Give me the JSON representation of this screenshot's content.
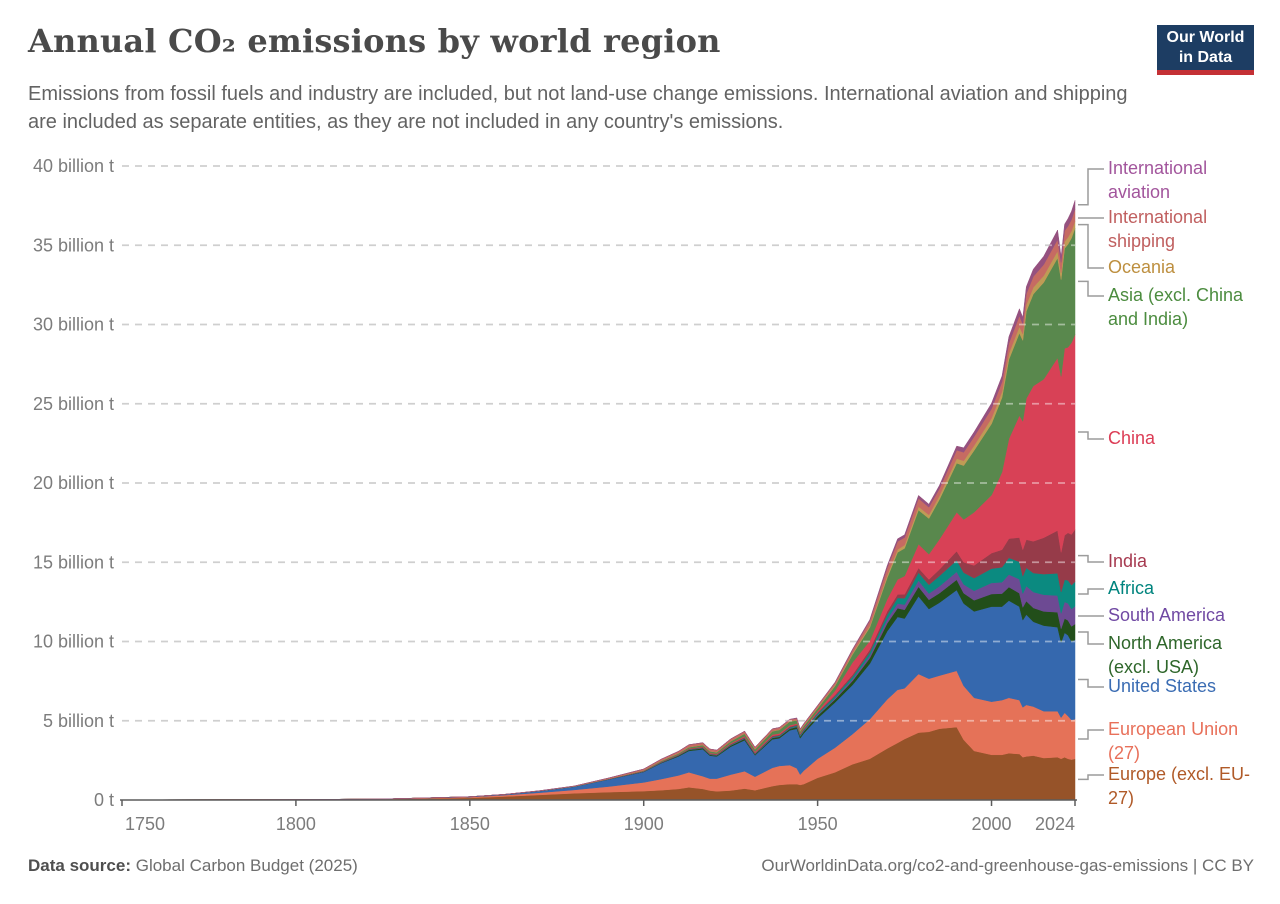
{
  "header": {
    "logo": {
      "line1": "Our World",
      "line2": "in Data",
      "bg_color": "#1d3d63",
      "accent_color": "#c43035"
    }
  },
  "footer": {
    "source_label": "Data source:",
    "source_value": "Global Carbon Budget (2025)",
    "attribution_link": "OurWorldinData.org/co2-and-greenhouse-gas-emissions",
    "attribution_license": "| CC BY"
  },
  "chart_data": {
    "type": "area",
    "stacked": true,
    "title": "Annual CO₂ emissions by world region",
    "subtitle": "Emissions from fossil fuels and industry are included, but not land-use change emissions. International aviation and shipping are included as separate entities, as they are not included in any country's emissions.",
    "unit": "billion t",
    "xlim": [
      1750,
      2024
    ],
    "ylim": [
      0,
      40
    ],
    "grid": "dashed-horizontal",
    "legend_position": "right",
    "x_ticks": [
      1750,
      1800,
      1850,
      1900,
      1950,
      2000,
      2024
    ],
    "y_ticks": [
      {
        "value": 0,
        "label": "0 t"
      },
      {
        "value": 5,
        "label": "5 billion t"
      },
      {
        "value": 10,
        "label": "10 billion t"
      },
      {
        "value": 15,
        "label": "15 billion t"
      },
      {
        "value": 20,
        "label": "20 billion t"
      },
      {
        "value": 25,
        "label": "25 billion t"
      },
      {
        "value": 30,
        "label": "30 billion t"
      },
      {
        "value": 35,
        "label": "35 billion t"
      },
      {
        "value": 40,
        "label": "40 billion t"
      }
    ],
    "x": [
      1750,
      1775,
      1800,
      1825,
      1850,
      1860,
      1870,
      1880,
      1890,
      1900,
      1905,
      1910,
      1913,
      1917,
      1919,
      1921,
      1925,
      1929,
      1932,
      1937,
      1939,
      1942,
      1944,
      1945,
      1946,
      1950,
      1955,
      1960,
      1965,
      1970,
      1973,
      1975,
      1979,
      1982,
      1985,
      1990,
      1992,
      1995,
      2000,
      2003,
      2005,
      2008,
      2009,
      2010,
      2012,
      2015,
      2019,
      2020,
      2021,
      2022,
      2023,
      2024
    ],
    "series": [
      {
        "id": "europe_excl_eu27",
        "label": "Europe (excl. EU-27)",
        "color": "#965329",
        "label_color": "#b05a28",
        "values": [
          0.009,
          0.015,
          0.025,
          0.05,
          0.135,
          0.22,
          0.32,
          0.42,
          0.5,
          0.56,
          0.62,
          0.7,
          0.8,
          0.7,
          0.6,
          0.55,
          0.6,
          0.72,
          0.62,
          0.88,
          0.95,
          1.0,
          1.0,
          0.95,
          1.0,
          1.4,
          1.75,
          2.25,
          2.6,
          3.25,
          3.6,
          3.85,
          4.25,
          4.3,
          4.5,
          4.6,
          3.8,
          3.1,
          2.85,
          2.85,
          2.95,
          2.9,
          2.7,
          2.75,
          2.8,
          2.65,
          2.7,
          2.6,
          2.7,
          2.6,
          2.55,
          2.6
        ]
      },
      {
        "id": "eu27",
        "label": "European Union (27)",
        "color": "#e57258",
        "label_color": "#e8705a",
        "values": [
          0.001,
          0.002,
          0.004,
          0.01,
          0.05,
          0.09,
          0.14,
          0.22,
          0.35,
          0.55,
          0.7,
          0.85,
          0.95,
          0.8,
          0.75,
          0.8,
          1.0,
          1.1,
          0.85,
          1.15,
          1.2,
          1.2,
          1.0,
          0.65,
          0.85,
          1.2,
          1.55,
          1.9,
          2.5,
          3.1,
          3.35,
          3.2,
          3.7,
          3.35,
          3.35,
          3.55,
          3.4,
          3.35,
          3.35,
          3.45,
          3.5,
          3.4,
          3.15,
          3.25,
          3.1,
          2.95,
          2.9,
          2.6,
          2.8,
          2.7,
          2.5,
          2.5
        ]
      },
      {
        "id": "united_states",
        "label": "United States",
        "color": "#3568ae",
        "label_color": "#3a6cb3",
        "values": [
          0,
          0,
          0.001,
          0.002,
          0.02,
          0.04,
          0.1,
          0.2,
          0.45,
          0.66,
          1.0,
          1.2,
          1.35,
          1.7,
          1.45,
          1.4,
          1.76,
          1.95,
          1.35,
          1.8,
          1.75,
          2.2,
          2.5,
          2.3,
          2.35,
          2.55,
          2.85,
          3.1,
          3.5,
          4.3,
          4.6,
          4.4,
          4.9,
          4.4,
          4.6,
          5.1,
          5.2,
          5.45,
          6.0,
          5.9,
          6.13,
          5.9,
          5.5,
          5.7,
          5.35,
          5.4,
          5.3,
          4.75,
          5.05,
          5.1,
          4.95,
          5.0
        ]
      },
      {
        "id": "north_america_excl_usa",
        "label": "North America (excl. USA)",
        "color": "#224e1a",
        "label_color": "#2e662a",
        "values": [
          0,
          0,
          0,
          0,
          0.001,
          0.002,
          0.005,
          0.005,
          0.01,
          0.02,
          0.03,
          0.05,
          0.06,
          0.07,
          0.06,
          0.06,
          0.08,
          0.09,
          0.06,
          0.09,
          0.09,
          0.1,
          0.11,
          0.11,
          0.12,
          0.16,
          0.2,
          0.25,
          0.35,
          0.5,
          0.55,
          0.55,
          0.6,
          0.58,
          0.6,
          0.65,
          0.65,
          0.7,
          0.8,
          0.82,
          0.85,
          0.85,
          0.8,
          0.85,
          0.87,
          0.9,
          0.95,
          0.85,
          0.9,
          0.93,
          0.95,
          1.0
        ]
      },
      {
        "id": "south_america",
        "label": "South America",
        "color": "#6d4a93",
        "label_color": "#7049a3",
        "values": [
          0,
          0,
          0,
          0,
          0,
          0.001,
          0.002,
          0.003,
          0.005,
          0.008,
          0.01,
          0.01,
          0.015,
          0.015,
          0.015,
          0.015,
          0.02,
          0.03,
          0.02,
          0.03,
          0.03,
          0.03,
          0.03,
          0.035,
          0.04,
          0.06,
          0.08,
          0.12,
          0.17,
          0.25,
          0.3,
          0.33,
          0.4,
          0.4,
          0.43,
          0.5,
          0.55,
          0.6,
          0.7,
          0.72,
          0.8,
          0.88,
          0.87,
          0.95,
          1.0,
          1.05,
          1.05,
          0.98,
          1.05,
          1.08,
          1.1,
          1.12
        ]
      },
      {
        "id": "africa",
        "label": "Africa",
        "color": "#0b8a80",
        "label_color": "#00847e",
        "values": [
          0,
          0,
          0,
          0,
          0,
          0.001,
          0.002,
          0.003,
          0.005,
          0.008,
          0.01,
          0.01,
          0.015,
          0.02,
          0.02,
          0.02,
          0.03,
          0.03,
          0.03,
          0.04,
          0.04,
          0.05,
          0.06,
          0.06,
          0.06,
          0.09,
          0.12,
          0.15,
          0.2,
          0.3,
          0.35,
          0.4,
          0.5,
          0.55,
          0.65,
          0.72,
          0.75,
          0.8,
          0.9,
          0.95,
          1.05,
          1.1,
          1.1,
          1.15,
          1.2,
          1.3,
          1.4,
          1.35,
          1.4,
          1.45,
          1.5,
          1.55
        ]
      },
      {
        "id": "india",
        "label": "India",
        "color": "#963b49",
        "label_color": "#a63a50",
        "values": [
          0,
          0,
          0,
          0,
          0.001,
          0.002,
          0.003,
          0.005,
          0.01,
          0.02,
          0.025,
          0.03,
          0.035,
          0.04,
          0.04,
          0.04,
          0.045,
          0.05,
          0.05,
          0.055,
          0.06,
          0.06,
          0.06,
          0.06,
          0.06,
          0.06,
          0.08,
          0.12,
          0.17,
          0.2,
          0.22,
          0.25,
          0.29,
          0.33,
          0.42,
          0.58,
          0.65,
          0.8,
          0.98,
          1.1,
          1.21,
          1.53,
          1.67,
          1.78,
          2.0,
          2.3,
          2.7,
          2.5,
          2.8,
          3.0,
          3.2,
          3.3
        ]
      },
      {
        "id": "china",
        "label": "China",
        "color": "#d84156",
        "label_color": "#dc3c55",
        "values": [
          0,
          0,
          0,
          0,
          0,
          0,
          0.001,
          0.002,
          0.005,
          0.01,
          0.015,
          0.02,
          0.025,
          0.03,
          0.035,
          0.035,
          0.05,
          0.06,
          0.06,
          0.08,
          0.08,
          0.08,
          0.06,
          0.05,
          0.05,
          0.08,
          0.26,
          0.78,
          0.55,
          0.77,
          0.95,
          1.15,
          1.5,
          1.6,
          1.9,
          2.45,
          2.7,
          3.35,
          3.65,
          4.9,
          6.3,
          7.7,
          8.1,
          8.9,
          9.8,
          10.0,
          10.9,
          11.1,
          11.8,
          11.7,
          12.1,
          12.3
        ]
      },
      {
        "id": "asia_excl_china_india",
        "label": "Asia (excl. China and India)",
        "color": "#59884d",
        "label_color": "#4c8c3f",
        "values": [
          0,
          0,
          0,
          0,
          0,
          0,
          0.001,
          0.002,
          0.01,
          0.03,
          0.05,
          0.07,
          0.08,
          0.09,
          0.1,
          0.09,
          0.12,
          0.15,
          0.15,
          0.21,
          0.22,
          0.23,
          0.2,
          0.12,
          0.13,
          0.18,
          0.3,
          0.5,
          0.85,
          1.35,
          1.7,
          1.75,
          2.15,
          2.25,
          2.5,
          3.1,
          3.4,
          3.9,
          4.5,
          4.7,
          5.0,
          5.2,
          5.1,
          5.5,
          5.8,
          6.1,
          6.3,
          6.1,
          6.3,
          6.5,
          6.6,
          6.7
        ]
      },
      {
        "id": "oceania",
        "label": "Oceania",
        "color": "#bf9b55",
        "label_color": "#bd8f3f",
        "values": [
          0,
          0,
          0,
          0,
          0.001,
          0.002,
          0.003,
          0.003,
          0.007,
          0.01,
          0.012,
          0.015,
          0.017,
          0.018,
          0.018,
          0.018,
          0.02,
          0.022,
          0.02,
          0.025,
          0.025,
          0.03,
          0.03,
          0.03,
          0.035,
          0.05,
          0.06,
          0.08,
          0.11,
          0.17,
          0.19,
          0.2,
          0.22,
          0.23,
          0.25,
          0.29,
          0.3,
          0.31,
          0.35,
          0.37,
          0.38,
          0.41,
          0.41,
          0.42,
          0.42,
          0.43,
          0.44,
          0.43,
          0.43,
          0.44,
          0.45,
          0.46
        ]
      },
      {
        "id": "intl_shipping",
        "label": "International shipping",
        "color": "#c66b62",
        "label_color": "#c05f5f",
        "values": [
          0,
          0,
          0,
          0,
          0.002,
          0.004,
          0.01,
          0.02,
          0.04,
          0.08,
          0.1,
          0.12,
          0.14,
          0.13,
          0.13,
          0.12,
          0.13,
          0.14,
          0.12,
          0.13,
          0.13,
          0.1,
          0.1,
          0.1,
          0.1,
          0.12,
          0.15,
          0.2,
          0.3,
          0.45,
          0.5,
          0.48,
          0.52,
          0.48,
          0.44,
          0.53,
          0.54,
          0.56,
          0.6,
          0.62,
          0.65,
          0.68,
          0.63,
          0.68,
          0.68,
          0.7,
          0.72,
          0.66,
          0.68,
          0.7,
          0.72,
          0.75
        ]
      },
      {
        "id": "intl_aviation",
        "label": "International aviation",
        "color": "#95517f",
        "label_color": "#a2559c",
        "values": [
          0,
          0,
          0,
          0,
          0,
          0,
          0,
          0,
          0,
          0,
          0,
          0,
          0,
          0,
          0,
          0,
          0.001,
          0.001,
          0.002,
          0.005,
          0.008,
          0.02,
          0.03,
          0.02,
          0.02,
          0.02,
          0.03,
          0.05,
          0.08,
          0.15,
          0.17,
          0.17,
          0.19,
          0.19,
          0.21,
          0.26,
          0.28,
          0.3,
          0.35,
          0.37,
          0.41,
          0.44,
          0.42,
          0.45,
          0.47,
          0.52,
          0.6,
          0.35,
          0.42,
          0.48,
          0.52,
          0.55
        ]
      }
    ]
  }
}
